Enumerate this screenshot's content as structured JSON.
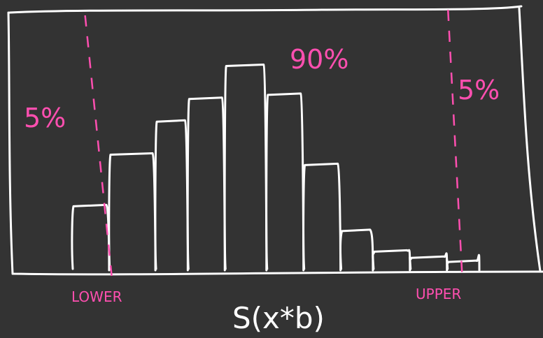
{
  "chart_data": {
    "type": "bar",
    "title": "",
    "xlabel": "S(x*b)",
    "ylabel": "",
    "bins": [
      {
        "height": 0.31
      },
      {
        "height": 0.56
      },
      {
        "height": 0.72
      },
      {
        "height": 0.83
      },
      {
        "height": 0.99
      },
      {
        "height": 0.85
      },
      {
        "height": 0.51
      },
      {
        "height": 0.19
      },
      {
        "height": 0.09
      },
      {
        "height": 0.06
      },
      {
        "height": 0.04
      }
    ],
    "bin_edges": [
      0.0,
      0.08,
      0.18,
      0.25,
      0.33,
      0.42,
      0.5,
      0.58,
      0.65,
      0.73,
      0.81,
      0.88
    ],
    "ylim": [
      0,
      1.1
    ],
    "lower_cutoff": 0.075,
    "upper_cutoff": 0.835,
    "annotations": {
      "left_tail": "5%",
      "middle": "90%",
      "right_tail": "5%",
      "lower_label": "LOWER",
      "upper_label": "UPPER"
    },
    "colors": {
      "background": "#333333",
      "bars": "#ffffff",
      "annotation": "#ff4fb0"
    }
  }
}
